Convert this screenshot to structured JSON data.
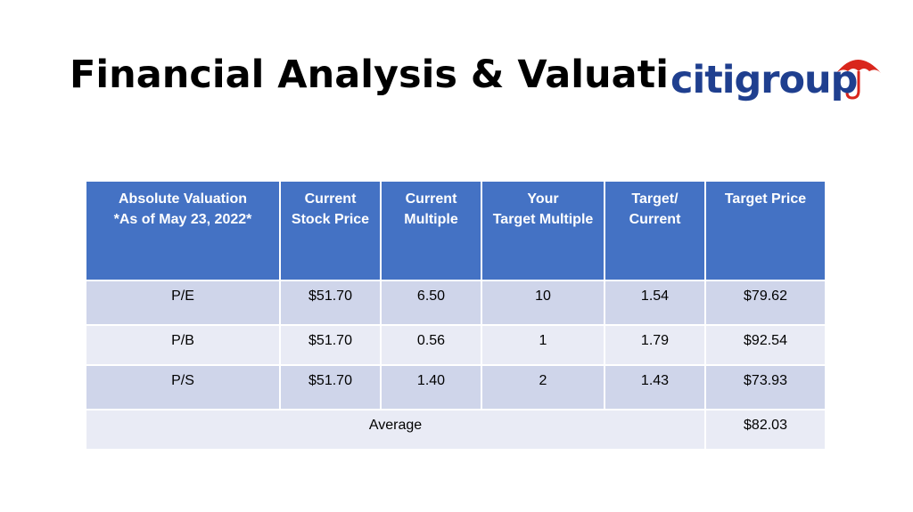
{
  "slide": {
    "title": "Financial Analysis & Valuation"
  },
  "logo": {
    "text": "citigroup",
    "colors": {
      "wordmark": "#1f3f8f",
      "umbrella": "#d9261c"
    }
  },
  "table": {
    "headers": [
      {
        "line1": "Absolute Valuation",
        "line2": "*As of May 23, 2022*"
      },
      {
        "line1": "Current",
        "line2": "Stock Price"
      },
      {
        "line1": "Current",
        "line2": "Multiple"
      },
      {
        "line1": "Your",
        "line2": "Target Multiple"
      },
      {
        "line1": "Target/",
        "line2": "Current"
      },
      {
        "line1": "Target Price",
        "line2": ""
      }
    ],
    "rows": [
      {
        "metric": "P/E",
        "price": "$51.70",
        "current_multiple": "6.50",
        "target_multiple": "10",
        "ratio": "1.54",
        "target_price": "$79.62"
      },
      {
        "metric": "P/B",
        "price": "$51.70",
        "current_multiple": "0.56",
        "target_multiple": "1",
        "ratio": "1.79",
        "target_price": "$92.54"
      },
      {
        "metric": "P/S",
        "price": "$51.70",
        "current_multiple": "1.40",
        "target_multiple": "2",
        "ratio": "1.43",
        "target_price": "$73.93"
      }
    ],
    "average": {
      "label": "Average",
      "value": "$82.03"
    }
  },
  "colors": {
    "header_bg": "#4472c4",
    "row_dark": "#cfd5ea",
    "row_light": "#e9ebf5"
  }
}
